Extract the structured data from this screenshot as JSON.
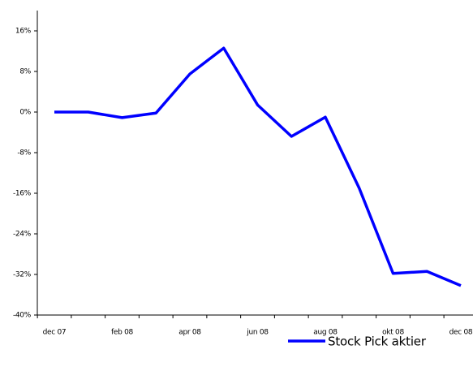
{
  "chart_data": {
    "type": "line",
    "categories": [
      "dec 07",
      null,
      "feb 08",
      null,
      "apr 08",
      null,
      "jun 08",
      null,
      "aug 08",
      null,
      "okt 08",
      null,
      "dec 08"
    ],
    "series": [
      {
        "name": "Stock Pick aktier",
        "color": "#0000ff",
        "values": [
          0,
          0,
          -1.1,
          -0.2,
          7.5,
          12.6,
          1.4,
          -4.8,
          -1,
          -15,
          -31.8,
          -31.4,
          -34.2
        ]
      }
    ],
    "ylim": [
      -40,
      20
    ],
    "yticks": [
      {
        "value": -40,
        "label": "-40%"
      },
      {
        "value": -32,
        "label": "-32%"
      },
      {
        "value": -24,
        "label": "-24%"
      },
      {
        "value": -16,
        "label": "-16%"
      },
      {
        "value": -8,
        "label": "-8%"
      },
      {
        "value": 0,
        "label": "0%"
      },
      {
        "value": 8,
        "label": "8%"
      },
      {
        "value": 16,
        "label": "16%"
      }
    ],
    "legend": "lower right"
  }
}
